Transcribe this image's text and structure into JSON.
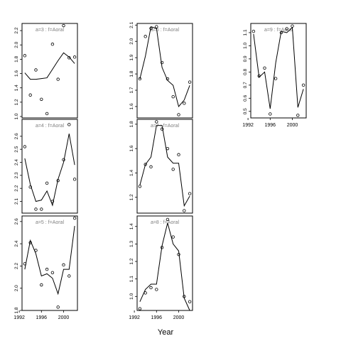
{
  "figure": {
    "xlabel": "Year"
  },
  "chart_data": [
    {
      "type": "scatter",
      "panel_label": "a=3 : f=Aoral",
      "x": [
        1993,
        1994,
        1995,
        1996,
        1997,
        1998,
        1999,
        2000,
        2001,
        2002
      ],
      "points": [
        1.85,
        1.3,
        1.65,
        1.24,
        1.04,
        2.01,
        1.52,
        2.27,
        1.82,
        1.83
      ],
      "fitted": [
        1.61,
        1.52,
        1.52,
        1.53,
        1.54,
        1.66,
        1.78,
        1.89,
        1.83,
        1.74
      ],
      "ylim": [
        0.98,
        2.3
      ],
      "yticks": [
        "1.0",
        "1.2",
        "1.4",
        "1.6",
        "1.8",
        "2.0",
        "2.2"
      ],
      "xticks": []
    },
    {
      "type": "scatter",
      "panel_label": "a=4 : f=Aoral",
      "x": [
        1993,
        1994,
        1995,
        1996,
        1997,
        1998,
        1999,
        2000,
        2001,
        2002
      ],
      "points": [
        2.52,
        2.21,
        2.04,
        2.04,
        2.24,
        2.1,
        2.26,
        2.42,
        2.69,
        2.27
      ],
      "fitted": [
        2.43,
        2.23,
        2.1,
        2.11,
        2.18,
        2.07,
        2.27,
        2.4,
        2.62,
        2.38
      ],
      "ylim": [
        2.01,
        2.73
      ],
      "yticks": [
        "2.1",
        "2.2",
        "2.3",
        "2.4",
        "2.5",
        "2.6"
      ],
      "xticks": []
    },
    {
      "type": "scatter",
      "panel_label": "a=5 : f=Aoral",
      "x": [
        1993,
        1994,
        1995,
        1996,
        1997,
        1998,
        1999,
        2000,
        2001,
        2002
      ],
      "points": [
        2.22,
        2.41,
        2.34,
        2.03,
        2.17,
        2.14,
        1.83,
        2.21,
        2.11,
        2.63
      ],
      "fitted": [
        2.17,
        2.43,
        2.31,
        2.11,
        2.13,
        2.09,
        1.95,
        2.17,
        2.17,
        2.56
      ],
      "ylim": [
        1.8,
        2.65
      ],
      "yticks": [
        "1.8",
        "2.0",
        "2.2",
        "2.4",
        "2.6"
      ],
      "xticks": [
        "1992",
        "1996",
        "2000"
      ]
    },
    {
      "type": "scatter",
      "panel_label": "a=6 : f=Aoral",
      "x": [
        1993,
        1994,
        1995,
        1996,
        1997,
        1998,
        1999,
        2000,
        2001,
        2002
      ],
      "points": [
        1.77,
        2.03,
        2.08,
        2.09,
        1.87,
        1.77,
        1.66,
        1.55,
        1.62,
        1.75
      ],
      "fitted": [
        1.77,
        1.91,
        2.09,
        2.08,
        1.84,
        1.76,
        1.73,
        1.6,
        1.64,
        1.73
      ],
      "ylim": [
        1.53,
        2.11
      ],
      "yticks": [
        "1.6",
        "1.7",
        "1.8",
        "1.9",
        "2.0",
        "2.1"
      ],
      "xticks": []
    },
    {
      "type": "scatter",
      "panel_label": "a=7 : f=Aoral",
      "x": [
        1993,
        1994,
        1995,
        1996,
        1997,
        1998,
        1999,
        2000,
        2001,
        2002
      ],
      "points": [
        1.29,
        1.47,
        1.45,
        1.82,
        1.76,
        1.6,
        1.43,
        1.55,
        1.09,
        1.23
      ],
      "fitted": [
        1.3,
        1.47,
        1.53,
        1.79,
        1.79,
        1.53,
        1.48,
        1.48,
        1.13,
        1.21
      ],
      "ylim": [
        1.07,
        1.84
      ],
      "yticks": [
        "1.2",
        "1.4",
        "1.6",
        "1.8"
      ],
      "xticks": []
    },
    {
      "type": "scatter",
      "panel_label": "a=8 : f=Aoral",
      "x": [
        1993,
        1994,
        1995,
        1996,
        1997,
        1998,
        1999,
        2000,
        2001,
        2002
      ],
      "points": [
        0.93,
        1.02,
        1.05,
        1.04,
        1.28,
        1.44,
        1.34,
        1.24,
        1.0,
        0.97
      ],
      "fitted": [
        0.97,
        1.04,
        1.07,
        1.07,
        1.29,
        1.42,
        1.3,
        1.26,
        0.99,
        0.92
      ],
      "ylim": [
        0.92,
        1.46
      ],
      "yticks": [
        "1.0",
        "1.1",
        "1.2",
        "1.3",
        "1.4"
      ],
      "xticks": [
        "1992",
        "1996",
        "2000"
      ]
    },
    {
      "type": "scatter",
      "panel_label": "a=9 : f=Aoral",
      "x": [
        1993,
        1994,
        1995,
        1996,
        1997,
        1998,
        1999,
        2000,
        2001,
        2002
      ],
      "points": [
        1.11,
        0.77,
        0.83,
        0.48,
        0.75,
        1.1,
        1.13,
        1.15,
        0.47,
        0.7
      ],
      "fitted": [
        1.09,
        0.76,
        0.8,
        0.52,
        0.87,
        1.11,
        1.1,
        1.14,
        0.53,
        0.67
      ],
      "ylim": [
        0.45,
        1.17
      ],
      "yticks": [
        "0.5",
        "0.6",
        "0.7",
        "0.8",
        "0.9",
        "1.0",
        "1.1"
      ],
      "xticks": [
        "1992",
        "1996",
        "2000"
      ]
    }
  ]
}
